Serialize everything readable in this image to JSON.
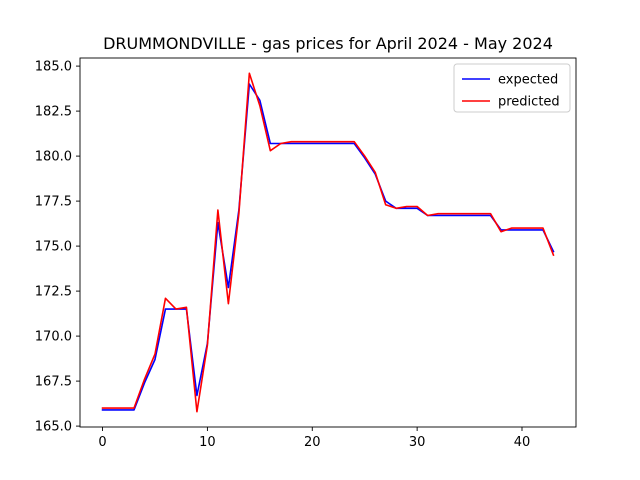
{
  "chart_data": {
    "type": "line",
    "title": "DRUMMONDVILLE - gas prices for April 2024 - May 2024",
    "xlabel": "",
    "ylabel": "",
    "xlim": [
      -2.15,
      45.15
    ],
    "ylim": [
      164.95,
      185.45
    ],
    "x_ticks": [
      0,
      10,
      20,
      30,
      40
    ],
    "y_ticks": [
      165.0,
      167.5,
      170.0,
      172.5,
      175.0,
      177.5,
      180.0,
      182.5,
      185.0
    ],
    "y_tick_labels": [
      "165.0",
      "167.5",
      "170.0",
      "172.5",
      "175.0",
      "177.5",
      "180.0",
      "182.5",
      "185.0"
    ],
    "grid": false,
    "legend_position": "top-right",
    "series": [
      {
        "name": "expected",
        "color": "#0000ff",
        "x": [
          0,
          1,
          2,
          3,
          4,
          5,
          6,
          7,
          8,
          9,
          10,
          11,
          12,
          13,
          14,
          15,
          16,
          17,
          18,
          19,
          20,
          21,
          22,
          23,
          24,
          25,
          26,
          27,
          28,
          29,
          30,
          31,
          32,
          33,
          34,
          35,
          36,
          37,
          38,
          39,
          40,
          41,
          42,
          43
        ],
        "y": [
          165.9,
          165.9,
          165.9,
          165.9,
          167.4,
          168.7,
          171.5,
          171.5,
          171.5,
          166.7,
          169.6,
          176.3,
          172.7,
          177.0,
          184.0,
          183.1,
          180.7,
          180.7,
          180.7,
          180.7,
          180.7,
          180.7,
          180.7,
          180.7,
          180.7,
          179.9,
          179.0,
          177.5,
          177.1,
          177.1,
          177.1,
          176.7,
          176.7,
          176.7,
          176.7,
          176.7,
          176.7,
          176.7,
          175.9,
          175.9,
          175.9,
          175.9,
          175.9,
          174.7
        ]
      },
      {
        "name": "predicted",
        "color": "#ff0000",
        "x": [
          0,
          1,
          2,
          3,
          4,
          5,
          6,
          7,
          8,
          9,
          10,
          11,
          12,
          13,
          14,
          15,
          16,
          17,
          18,
          19,
          20,
          21,
          22,
          23,
          24,
          25,
          26,
          27,
          28,
          29,
          30,
          31,
          32,
          33,
          34,
          35,
          36,
          37,
          38,
          39,
          40,
          41,
          42,
          43
        ],
        "y": [
          166.0,
          166.0,
          166.0,
          166.0,
          167.6,
          169.0,
          172.1,
          171.5,
          171.6,
          165.8,
          169.5,
          177.0,
          171.8,
          176.8,
          184.6,
          182.8,
          180.3,
          180.7,
          180.8,
          180.8,
          180.8,
          180.8,
          180.8,
          180.8,
          180.8,
          180.0,
          179.1,
          177.3,
          177.1,
          177.2,
          177.2,
          176.7,
          176.8,
          176.8,
          176.8,
          176.8,
          176.8,
          176.8,
          175.8,
          176.0,
          176.0,
          176.0,
          176.0,
          174.5
        ]
      }
    ]
  }
}
